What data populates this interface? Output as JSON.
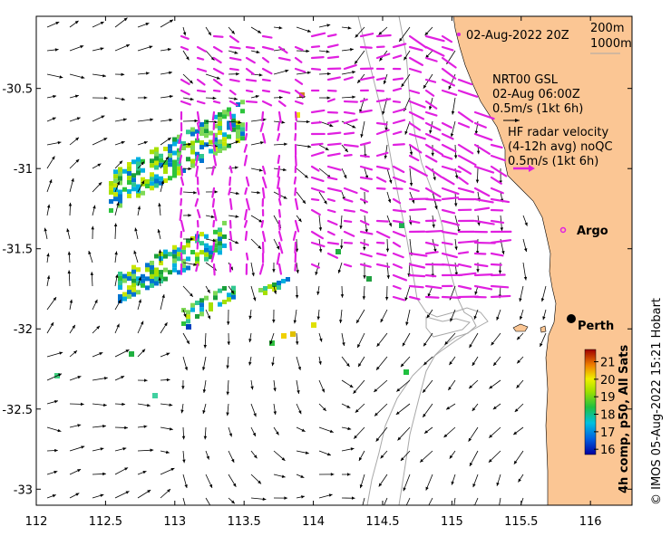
{
  "map": {
    "date_label": "02-Aug-2022 20Z",
    "isobath_legend": [
      "200m",
      "1000m"
    ],
    "gsl_legend": [
      "NRT00 GSL",
      "02-Aug 06:00Z",
      "0.5m/s (1kt 6h)"
    ],
    "hf_legend": [
      "HF radar velocity",
      "(4-12h avg) noQC",
      "0.5m/s (1kt 6h)"
    ],
    "places": [
      {
        "name": "Argo",
        "lon": 115.75,
        "lat": -31.45,
        "marker": "circle-open",
        "color": "#e020e0"
      },
      {
        "name": "Perth",
        "lon": 115.86,
        "lat": -31.95,
        "marker": "dot",
        "color": "#000000"
      }
    ],
    "x_ticks": [
      "112",
      "112.5",
      "113",
      "113.5",
      "114",
      "114.5",
      "115",
      "115.5",
      "116"
    ],
    "y_ticks": [
      "-30.5",
      "-31",
      "-31.5",
      "-32",
      "-32.5",
      "-33"
    ],
    "xlim": [
      112,
      116.3
    ],
    "ylim": [
      -33.1,
      -30.05
    ],
    "colorbar": {
      "label": "4h comp, p50, All Sats",
      "ticks": [
        "21",
        "20",
        "19",
        "18",
        "17",
        "16"
      ],
      "range": [
        15.7,
        21.7
      ]
    },
    "credit": "© IMOS 05-Aug-2022 15:21 Hobart",
    "colors": {
      "land": "#fbc694",
      "gsl_arrows": "#000000",
      "hf_arrows": "#e020e0",
      "isobath": "#a8a8a8"
    }
  }
}
